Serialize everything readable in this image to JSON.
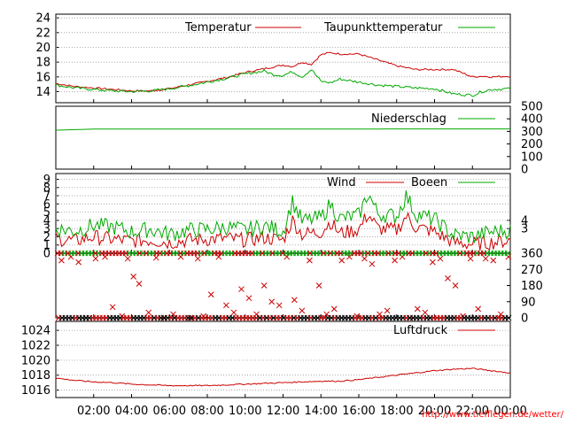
{
  "chart_data": {
    "type": "line",
    "time_axis": {
      "ticks": [
        "02:00",
        "04:00",
        "06:00",
        "08:00",
        "10:00",
        "12:00",
        "14:00",
        "16:00",
        "18:00",
        "20:00",
        "22:00",
        "00:00"
      ],
      "hours": [
        2,
        4,
        6,
        8,
        10,
        12,
        14,
        16,
        18,
        20,
        22,
        24
      ],
      "range_hours": [
        0,
        24
      ]
    },
    "panels": [
      {
        "name": "temperature",
        "y_ticks": [
          14,
          16,
          18,
          20,
          22,
          24
        ],
        "ylim": [
          12.5,
          24.5
        ],
        "grid": true,
        "legend": "top-right",
        "series": [
          {
            "name": "Temperatur",
            "color": "#cc0000",
            "x": [
              0,
              1,
              2,
              3,
              4,
              5,
              6,
              7,
              8,
              9,
              10,
              11,
              12,
              12.5,
              13,
              13.5,
              14,
              14.5,
              15,
              16,
              17,
              18,
              19,
              20,
              21,
              22,
              22.5,
              23,
              24
            ],
            "y": [
              15.1,
              14.7,
              14.5,
              14.3,
              14.1,
              14.1,
              14.4,
              14.9,
              15.4,
              15.9,
              16.6,
              17.1,
              17.6,
              17.4,
              18.0,
              17.7,
              19.0,
              19.3,
              19.1,
              19.1,
              18.3,
              17.5,
              17.0,
              17.0,
              17.0,
              16.0,
              16.1,
              16.0,
              16.1
            ]
          },
          {
            "name": "Taupunkttemperatur",
            "color": "#00aa00",
            "x": [
              0,
              1,
              2,
              3,
              4,
              5,
              6,
              7,
              8,
              9,
              10,
              11,
              11.5,
              12,
              12.5,
              13,
              13.5,
              14,
              14.5,
              15,
              16,
              17,
              18,
              19,
              20,
              21,
              22,
              22.5,
              23,
              24
            ],
            "y": [
              14.9,
              14.5,
              14.3,
              14.1,
              14.0,
              14.1,
              14.4,
              14.8,
              15.3,
              15.8,
              16.4,
              16.8,
              16.3,
              16.2,
              16.7,
              16.0,
              17.0,
              15.4,
              15.2,
              15.7,
              15.3,
              14.9,
              14.7,
              14.5,
              14.4,
              13.7,
              13.5,
              14.0,
              14.3,
              14.4
            ]
          }
        ]
      },
      {
        "name": "precipitation",
        "y_ticks": [
          0,
          100,
          200,
          300,
          400,
          500
        ],
        "ylim": [
          0,
          500
        ],
        "grid": false,
        "series": [
          {
            "name": "Niederschlag",
            "color": "#00aa00",
            "x": [
              0,
              2,
              24
            ],
            "y": [
              310,
              318,
              320
            ]
          }
        ]
      },
      {
        "name": "wind",
        "y_ticks_left": [
          0,
          1,
          2,
          3,
          4,
          5,
          6,
          7,
          8,
          9
        ],
        "y_ticks_right": [
          3,
          4
        ],
        "ylim": [
          0,
          9.7
        ],
        "grid": true,
        "series": [
          {
            "name": "Wind",
            "color": "#cc0000",
            "x": [
              0,
              1,
              2,
              3,
              4,
              5,
              6,
              7,
              8,
              9,
              10,
              11,
              12,
              12.5,
              13,
              14,
              14.5,
              15,
              16,
              16.5,
              17,
              18,
              18.5,
              19,
              20,
              21,
              22,
              23,
              24
            ],
            "y": [
              1.8,
              1.5,
              2.0,
              1.7,
              1.5,
              1.6,
              1.3,
              1.6,
              1.7,
              1.8,
              1.6,
              1.9,
              1.6,
              4.0,
              2.3,
              2.6,
              3.8,
              2.4,
              2.9,
              4.8,
              3.0,
              2.8,
              4.5,
              3.2,
              2.6,
              1.3,
              1.1,
              1.3,
              1.6
            ]
          },
          {
            "name": "Boeen",
            "color": "#00aa00",
            "x": [
              0,
              1,
              2,
              3,
              4,
              5,
              6,
              7,
              8,
              9,
              10,
              11,
              12,
              12.5,
              13,
              14,
              14.5,
              15,
              16,
              16.5,
              17,
              18,
              18.5,
              19,
              20,
              21,
              22,
              23,
              24
            ],
            "y": [
              3.0,
              2.7,
              3.4,
              3.2,
              2.6,
              2.9,
              2.3,
              2.8,
              2.9,
              3.2,
              2.8,
              3.3,
              2.7,
              6.3,
              3.9,
              4.3,
              6.0,
              4.2,
              4.6,
              7.3,
              4.8,
              4.5,
              7.0,
              4.8,
              4.1,
              2.2,
              2.0,
              2.6,
              2.8
            ]
          }
        ]
      },
      {
        "name": "wind-direction",
        "y_ticks": [
          0,
          90,
          180,
          270,
          360
        ],
        "ylim": [
          0,
          360
        ],
        "grid": false,
        "series": [
          {
            "name": "direction",
            "color": "#cc0000",
            "x": [
              0.3,
              0.8,
              1.2,
              1.6,
              2.1,
              2.6,
              3.0,
              3.5,
              3.8,
              4.1,
              4.4,
              4.9,
              5.3,
              5.7,
              6.2,
              6.6,
              7.1,
              7.5,
              7.8,
              8.2,
              8.6,
              9.0,
              9.4,
              9.8,
              10.2,
              10.6,
              11.0,
              11.4,
              11.8,
              12.2,
              12.6,
              13.0,
              13.4,
              13.9,
              14.3,
              14.7,
              15.1,
              15.5,
              15.9,
              16.3,
              16.7,
              17.1,
              17.5,
              17.9,
              18.3,
              18.7,
              19.1,
              19.5,
              19.9,
              20.3,
              20.7,
              21.1,
              21.5,
              21.9,
              22.3,
              22.7,
              23.1,
              23.5,
              23.9
            ],
            "y": [
              320,
              340,
              310,
              0,
              330,
              340,
              60,
              10,
              330,
              230,
              190,
              30,
              335,
              0,
              20,
              340,
              0,
              330,
              10,
              130,
              340,
              70,
              30,
              160,
              110,
              20,
              180,
              90,
              70,
              340,
              100,
              40,
              320,
              180,
              20,
              50,
              320,
              340,
              10,
              330,
              300,
              20,
              40,
              320,
              340,
              0,
              50,
              30,
              310,
              330,
              220,
              180,
              10,
              330,
              50,
              330,
              320,
              20,
              340
            ]
          }
        ]
      },
      {
        "name": "pressure",
        "y_ticks": [
          1016,
          1018,
          1020,
          1022,
          1024
        ],
        "ylim": [
          1015.0,
          1025.2
        ],
        "grid": true,
        "series": [
          {
            "name": "Luftdruck",
            "color": "#cc0000",
            "x": [
              0,
              1,
              2,
              3,
              4,
              5,
              6,
              7,
              8,
              9,
              10,
              11,
              12,
              13,
              14,
              15,
              16,
              17,
              18,
              19,
              20,
              21,
              22,
              23,
              24
            ],
            "y": [
              1017.6,
              1017.3,
              1017.1,
              1017.0,
              1016.8,
              1016.7,
              1016.6,
              1016.6,
              1016.6,
              1016.7,
              1016.8,
              1016.9,
              1017.0,
              1017.1,
              1017.2,
              1017.2,
              1017.4,
              1017.7,
              1018.0,
              1018.3,
              1018.6,
              1018.8,
              1018.9,
              1018.6,
              1018.3
            ]
          }
        ]
      }
    ]
  },
  "footer": {
    "credit": "http://www.tiefflegen.de/wetter/"
  }
}
